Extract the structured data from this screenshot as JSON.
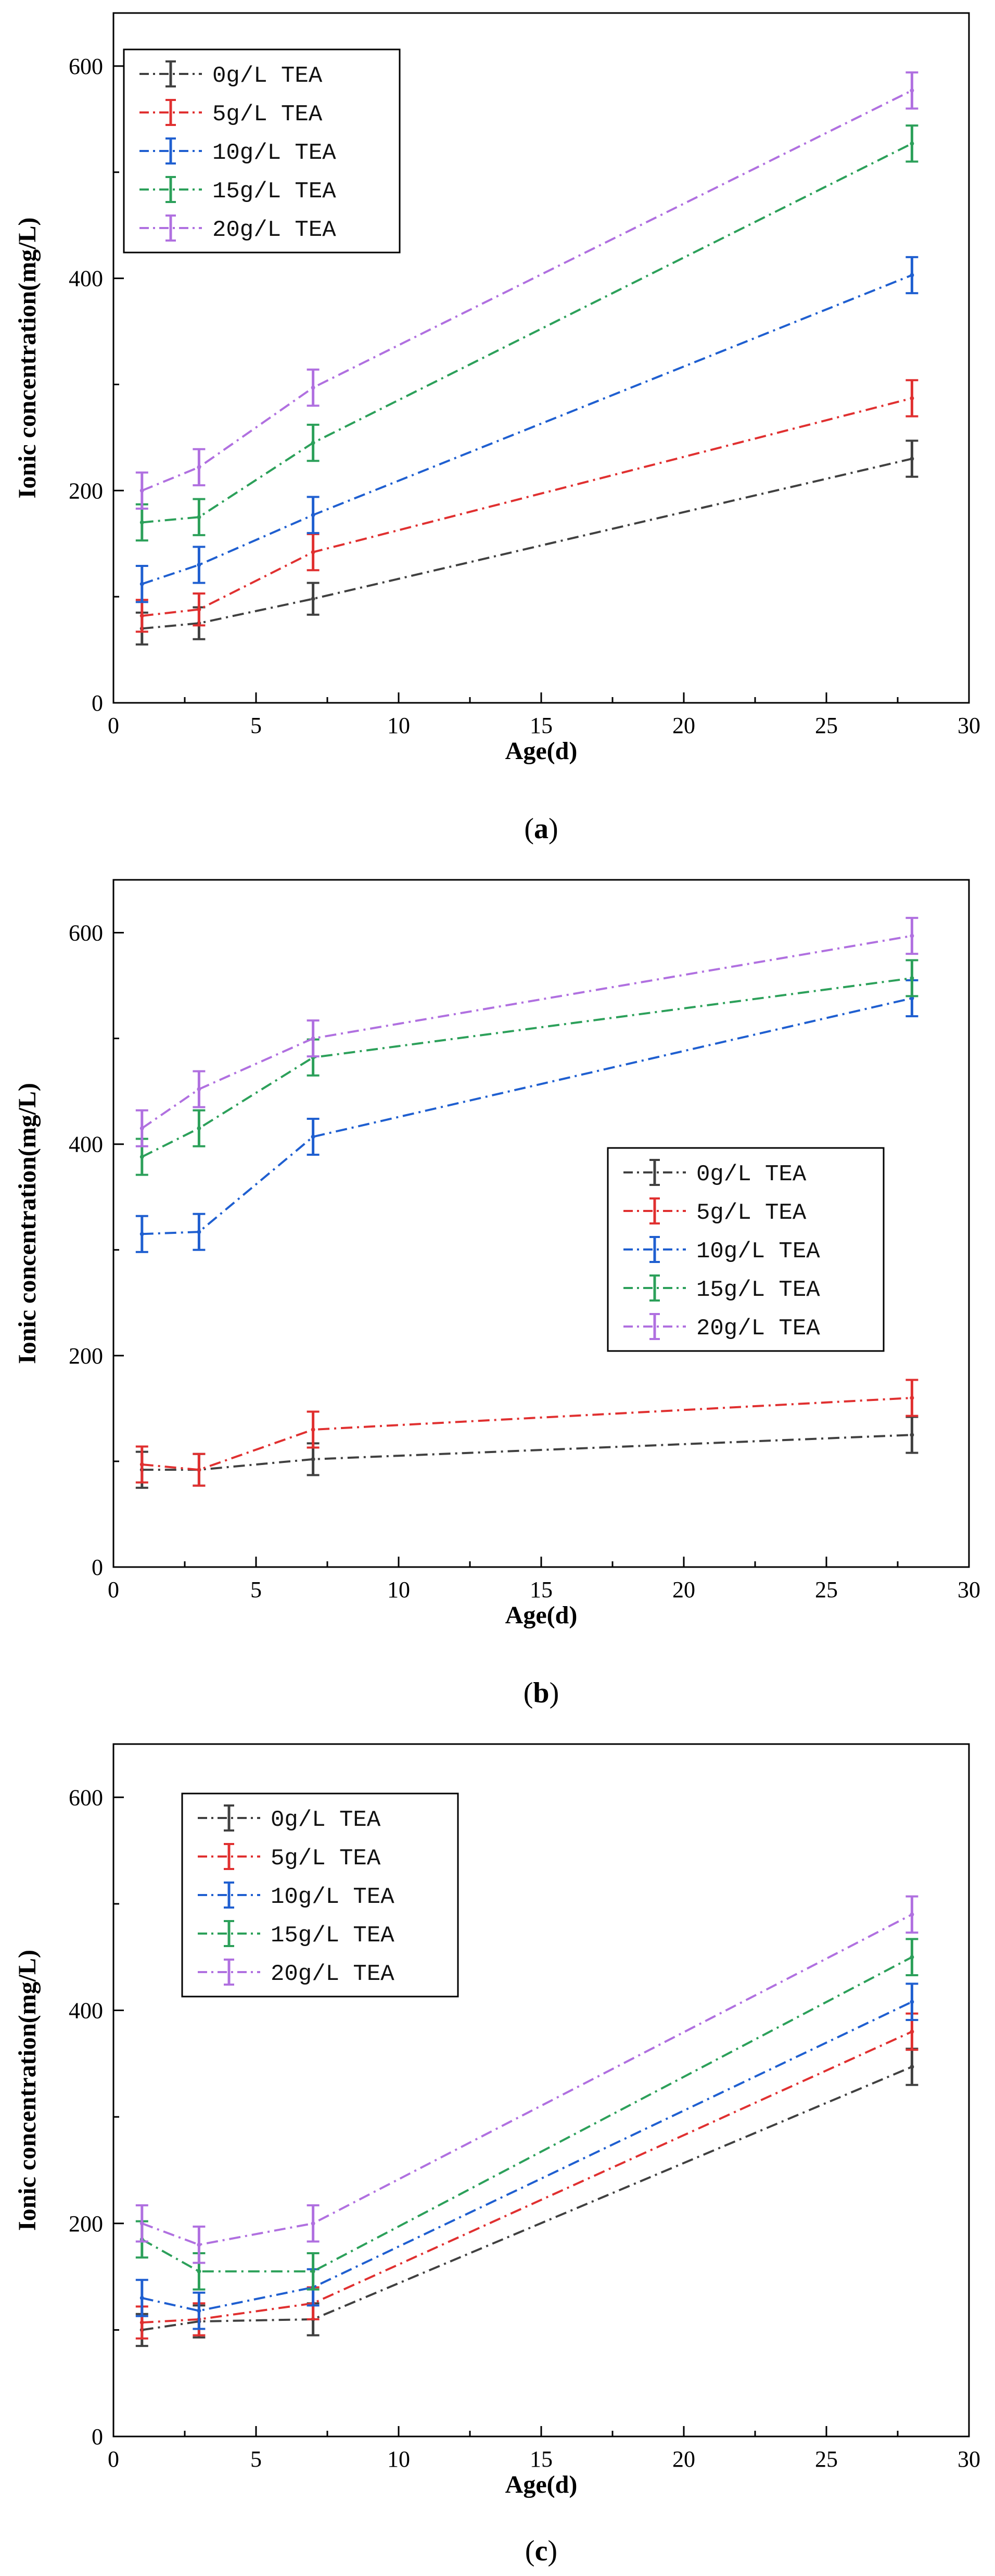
{
  "colors": {
    "0g/L TEA": "#404040",
    "5g/L TEA": "#e03030",
    "10g/L TEA": "#1f5fd0",
    "15g/L TEA": "#2ca05a",
    "20g/L TEA": "#b070e0"
  },
  "chart_data": [
    {
      "type": "line",
      "panel_label": "a",
      "xlabel": "Age(d)",
      "ylabel": "Ionic concentration(mg/L)",
      "xlim": [
        0,
        30
      ],
      "ylim": [
        0,
        650
      ],
      "xticks": [
        0,
        5,
        10,
        15,
        20,
        25,
        30
      ],
      "yticks": [
        0,
        200,
        400,
        600
      ],
      "legend_position": "top-left",
      "x": [
        1,
        3,
        7,
        28
      ],
      "series": [
        {
          "name": "0g/L TEA",
          "values": [
            70,
            75,
            98,
            230
          ],
          "errors": [
            15,
            15,
            15,
            17
          ]
        },
        {
          "name": "5g/L TEA",
          "values": [
            82,
            88,
            142,
            287
          ],
          "errors": [
            15,
            15,
            17,
            17
          ]
        },
        {
          "name": "10g/L TEA",
          "values": [
            112,
            130,
            177,
            403
          ],
          "errors": [
            17,
            17,
            17,
            17
          ]
        },
        {
          "name": "15g/L TEA",
          "values": [
            170,
            175,
            245,
            527
          ],
          "errors": [
            17,
            17,
            17,
            17
          ]
        },
        {
          "name": "20g/L TEA",
          "values": [
            200,
            222,
            297,
            577
          ],
          "errors": [
            17,
            17,
            17,
            17
          ]
        }
      ]
    },
    {
      "type": "line",
      "panel_label": "b",
      "xlabel": "Age(d)",
      "ylabel": "Ionic concentration(mg/L)",
      "xlim": [
        0,
        30
      ],
      "ylim": [
        0,
        650
      ],
      "xticks": [
        0,
        5,
        10,
        15,
        20,
        25,
        30
      ],
      "yticks": [
        0,
        200,
        400,
        600
      ],
      "legend_position": "center-right",
      "x": [
        1,
        3,
        7,
        28
      ],
      "series": [
        {
          "name": "0g/L TEA",
          "values": [
            92,
            92,
            102,
            125
          ],
          "errors": [
            17,
            15,
            15,
            17
          ]
        },
        {
          "name": "5g/L TEA",
          "values": [
            97,
            92,
            130,
            160
          ],
          "errors": [
            17,
            15,
            17,
            17
          ]
        },
        {
          "name": "10g/L TEA",
          "values": [
            315,
            317,
            407,
            538
          ],
          "errors": [
            17,
            17,
            17,
            17
          ]
        },
        {
          "name": "15g/L TEA",
          "values": [
            388,
            415,
            482,
            557
          ],
          "errors": [
            17,
            17,
            17,
            17
          ]
        },
        {
          "name": "20g/L TEA",
          "values": [
            415,
            452,
            500,
            597
          ],
          "errors": [
            17,
            17,
            17,
            17
          ]
        }
      ]
    },
    {
      "type": "line",
      "panel_label": "c",
      "xlabel": "Age(d)",
      "ylabel": "Ionic concentration(mg/L)",
      "xlim": [
        0,
        30
      ],
      "ylim": [
        0,
        650
      ],
      "xticks": [
        0,
        5,
        10,
        15,
        20,
        25,
        30
      ],
      "yticks": [
        0,
        200,
        400,
        600
      ],
      "legend_position": "top-left",
      "x": [
        1,
        3,
        7,
        28
      ],
      "series": [
        {
          "name": "0g/L TEA",
          "values": [
            100,
            108,
            110,
            347
          ],
          "errors": [
            15,
            15,
            15,
            17
          ]
        },
        {
          "name": "5g/L TEA",
          "values": [
            107,
            110,
            125,
            380
          ],
          "errors": [
            15,
            15,
            15,
            17
          ]
        },
        {
          "name": "10g/L TEA",
          "values": [
            130,
            118,
            140,
            408
          ],
          "errors": [
            17,
            17,
            17,
            17
          ]
        },
        {
          "name": "15g/L TEA",
          "values": [
            185,
            155,
            155,
            450
          ],
          "errors": [
            17,
            17,
            17,
            17
          ]
        },
        {
          "name": "20g/L TEA",
          "values": [
            200,
            180,
            200,
            490
          ],
          "errors": [
            17,
            17,
            17,
            17
          ]
        }
      ]
    }
  ]
}
